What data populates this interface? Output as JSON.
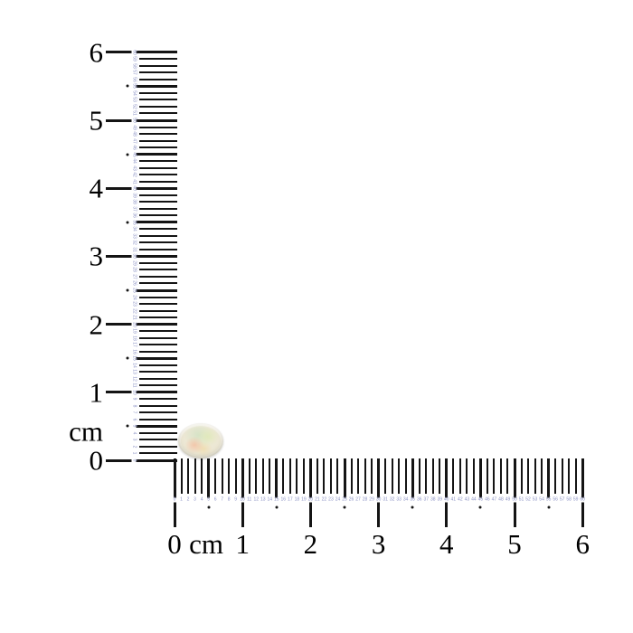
{
  "scene": {
    "background_color": "#ffffff",
    "tick_color": "#141414",
    "mm_number_color": "#8a91c4",
    "cm_label_color": "#000000"
  },
  "vertical_ruler": {
    "unit_text": "cm",
    "cm_labels": [
      "0",
      "1",
      "2",
      "3",
      "4",
      "5",
      "6"
    ],
    "mm_min": 0,
    "mm_max": 60,
    "mm_labels": [
      0,
      1,
      2,
      3,
      4,
      5,
      6,
      7,
      8,
      9,
      10,
      11,
      12,
      13,
      14,
      15,
      16,
      17,
      18,
      19,
      20,
      21,
      22,
      23,
      24,
      25,
      26,
      27,
      28,
      29,
      30,
      31,
      32,
      33,
      34,
      35,
      36,
      37,
      38,
      39,
      40,
      41,
      42,
      43,
      44,
      45,
      46,
      47,
      48,
      49,
      50,
      51,
      52,
      53,
      54,
      55,
      56,
      57,
      58,
      59,
      60
    ],
    "half_cm_dots_at": [
      5,
      15,
      25,
      35,
      45,
      55
    ]
  },
  "horizontal_ruler": {
    "unit_text": "cm",
    "cm_labels": [
      "0",
      "1",
      "2",
      "3",
      "4",
      "5",
      "6"
    ],
    "mm_min": 0,
    "mm_max": 60,
    "mm_labels": [
      0,
      1,
      2,
      3,
      4,
      5,
      6,
      7,
      8,
      9,
      10,
      11,
      12,
      13,
      14,
      15,
      16,
      17,
      18,
      19,
      20,
      21,
      22,
      23,
      24,
      25,
      26,
      27,
      28,
      29,
      30,
      31,
      32,
      33,
      34,
      35,
      36,
      37,
      38,
      39,
      40,
      41,
      42,
      43,
      44,
      45,
      46,
      47,
      48,
      49,
      50,
      51,
      52,
      53,
      54,
      55,
      56,
      57,
      58,
      59,
      60
    ],
    "half_cm_dots_at": [
      5,
      15,
      25,
      35,
      45,
      55
    ]
  },
  "gemstone": {
    "name": "opal",
    "shape": "oval",
    "body_color": "#f2edda",
    "rim_color": "#e2ddc9",
    "play_of_color_green": "#cfe0c2",
    "play_of_color_peach": "#f4bfa0",
    "play_of_color_yellow": "#f0d9a6",
    "play_of_color_lime": "#dfe9b6"
  }
}
